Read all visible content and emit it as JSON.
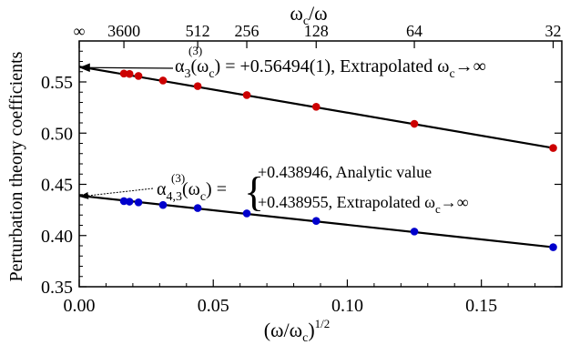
{
  "chart_data": {
    "type": "scatter",
    "xlabel": "(ω/ω",
    "xlabel_sub": "c",
    "xlabel_sup": "1/2",
    "xlabel_close": ")",
    "ylabel": "Perturbation theory coefficients",
    "top_axis_label": "ω",
    "top_axis_label_sub": "c",
    "top_axis_label_tail": "/ω",
    "xlim": [
      0.0,
      0.18
    ],
    "ylim": [
      0.35,
      0.59
    ],
    "grid": false,
    "x_ticks": [
      0.0,
      0.05,
      0.1,
      0.15
    ],
    "x_tick_labels": [
      "0.00",
      "0.05",
      "0.10",
      "0.15"
    ],
    "y_ticks": [
      0.35,
      0.4,
      0.45,
      0.5,
      0.55
    ],
    "y_tick_labels": [
      "0.35",
      "0.40",
      "0.45",
      "0.50",
      "0.55"
    ],
    "top_ticks": [
      {
        "label": "∞",
        "x": 0.0
      },
      {
        "label": "3600",
        "x": 0.016667
      },
      {
        "label": "512",
        "x": 0.044194
      },
      {
        "label": "256",
        "x": 0.0625
      },
      {
        "label": "128",
        "x": 0.088388
      },
      {
        "label": "64",
        "x": 0.125
      },
      {
        "label": "32",
        "x": 0.176777
      }
    ],
    "series": [
      {
        "color": "#cc0000",
        "x": [
          0.016667,
          0.01875,
          0.0221,
          0.03125,
          0.044194,
          0.0625,
          0.088388,
          0.125,
          0.176777
        ],
        "y": [
          0.5582,
          0.5578,
          0.5558,
          0.5514,
          0.5459,
          0.5372,
          0.5257,
          0.5091,
          0.4855
        ]
      },
      {
        "color": "#0000cc",
        "x": [
          0.016667,
          0.01875,
          0.0221,
          0.03125,
          0.044194,
          0.0625,
          0.088388,
          0.125,
          0.176777
        ],
        "y": [
          0.4336,
          0.4331,
          0.4324,
          0.4298,
          0.4268,
          0.4216,
          0.4143,
          0.4039,
          0.3886
        ]
      }
    ],
    "fit_lines": [
      {
        "x": [
          0.0,
          0.176777
        ],
        "y": [
          0.56494,
          0.4855
        ]
      },
      {
        "x": [
          0.0,
          0.176777
        ],
        "y": [
          0.438955,
          0.3886
        ]
      }
    ],
    "annotations": {
      "alpha3": {
        "symbol": "α",
        "sub": "3",
        "sup": "(3)",
        "arg": "(ω",
        "arg_sub": "c",
        "arg_close": ")",
        "text": " = +0.56494(1), Extrapolated ω",
        "text_sub": "c",
        "text_tail": "→∞",
        "arrow_to": [
          0.0,
          0.56494
        ]
      },
      "alpha43": {
        "symbol": "α",
        "sub": "4,3",
        "sup": "(3)",
        "arg": "(ω",
        "arg_sub": "c",
        "arg_close": ") =",
        "brace": "{",
        "line1": "+0.438946, Analytic value",
        "line2": "+0.438955, Extrapolated ω",
        "line2_sub": "c",
        "line2_tail": "→∞",
        "arrow_to": [
          0.0,
          0.438955
        ]
      }
    }
  }
}
